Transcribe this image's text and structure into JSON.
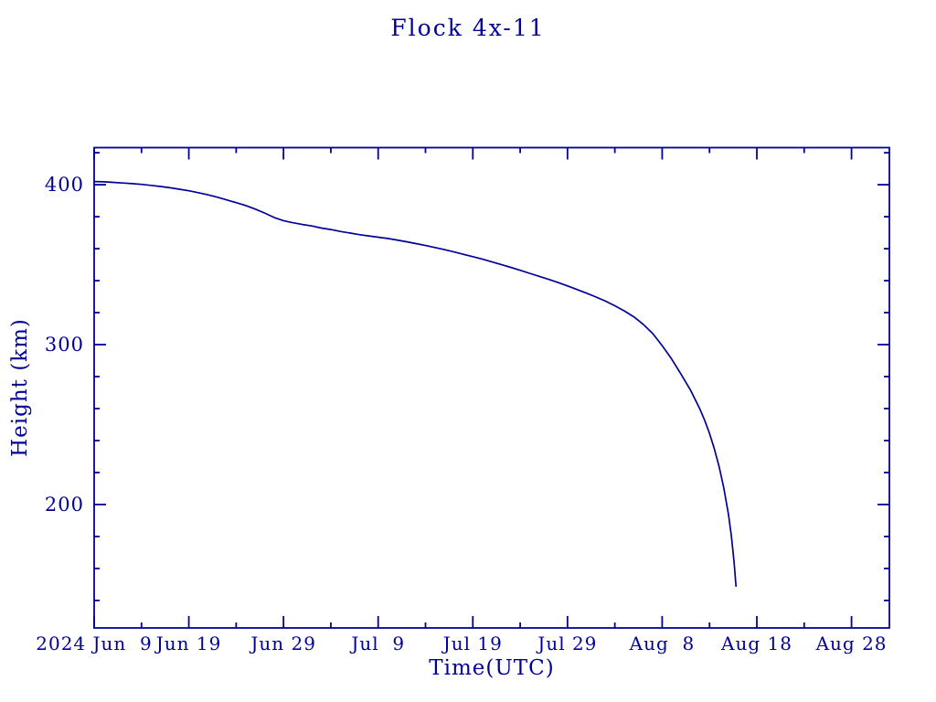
{
  "page": {
    "background": "#ffffff"
  },
  "chart_data": {
    "type": "line",
    "title": "Flock 4x-11",
    "xlabel": "Time(UTC)",
    "ylabel": "Height (km)",
    "text_color": "#000099",
    "axis_color": "#000099",
    "line_color": "#000099",
    "background": "#ffffff",
    "grid": false,
    "legend": "none",
    "x_axis": {
      "unit": "date (days after 2024 Jun 9)",
      "range_days": [
        0,
        84
      ],
      "major_ticks": [
        {
          "day": 0,
          "label": "2024 Jun  9"
        },
        {
          "day": 10,
          "label": "Jun 19"
        },
        {
          "day": 20,
          "label": "Jun 29"
        },
        {
          "day": 30,
          "label": "Jul  9"
        },
        {
          "day": 40,
          "label": "Jul 19"
        },
        {
          "day": 50,
          "label": "Jul 29"
        },
        {
          "day": 60,
          "label": "Aug  8"
        },
        {
          "day": 70,
          "label": "Aug 18"
        },
        {
          "day": 80,
          "label": "Aug 28"
        }
      ],
      "minor_tick_days": [
        5,
        15,
        25,
        35,
        45,
        55,
        65,
        75
      ]
    },
    "y_axis": {
      "unit": "km",
      "range": [
        122.8,
        423.2
      ],
      "major_ticks": [
        400,
        300,
        200
      ],
      "minor_ticks": [
        420,
        380,
        360,
        340,
        320,
        280,
        260,
        240,
        220,
        180,
        160,
        140
      ]
    },
    "series": [
      {
        "name": "Flock 4x-11 height",
        "points_day_km": [
          [
            0,
            402
          ],
          [
            1,
            401.8
          ],
          [
            2,
            401.5
          ],
          [
            3,
            401.1
          ],
          [
            4,
            400.7
          ],
          [
            5,
            400.2
          ],
          [
            6,
            399.6
          ],
          [
            7,
            398.9
          ],
          [
            8,
            398.1
          ],
          [
            9,
            397.2
          ],
          [
            10,
            396.2
          ],
          [
            11,
            395
          ],
          [
            12,
            393.7
          ],
          [
            13,
            392.2
          ],
          [
            14,
            390.5
          ],
          [
            15,
            388.8
          ],
          [
            16,
            387
          ],
          [
            17,
            384.8
          ],
          [
            18,
            382.3
          ],
          [
            19,
            379.5
          ],
          [
            20,
            377.5
          ],
          [
            21,
            376.2
          ],
          [
            22,
            375.1
          ],
          [
            23,
            374.2
          ],
          [
            24,
            372.9
          ],
          [
            25,
            372
          ],
          [
            26,
            370.8
          ],
          [
            27,
            369.8
          ],
          [
            28,
            368.8
          ],
          [
            29,
            368
          ],
          [
            30,
            367.2
          ],
          [
            31,
            366.4
          ],
          [
            32,
            365.4
          ],
          [
            33,
            364.3
          ],
          [
            34,
            363.2
          ],
          [
            35,
            362
          ],
          [
            36,
            360.7
          ],
          [
            37,
            359.4
          ],
          [
            38,
            358
          ],
          [
            39,
            356.5
          ],
          [
            40,
            355
          ],
          [
            41,
            353.5
          ],
          [
            42,
            351.8
          ],
          [
            43,
            350.1
          ],
          [
            44,
            348.3
          ],
          [
            45,
            346.5
          ],
          [
            46,
            344.6
          ],
          [
            47,
            342.7
          ],
          [
            48,
            340.8
          ],
          [
            49,
            338.8
          ],
          [
            50,
            336.7
          ],
          [
            51,
            334.5
          ],
          [
            52,
            332.2
          ],
          [
            53,
            329.8
          ],
          [
            54,
            327.2
          ],
          [
            55,
            324.3
          ],
          [
            56,
            321.1
          ],
          [
            57,
            317.4
          ],
          [
            58,
            312.7
          ],
          [
            59,
            306.9
          ],
          [
            60,
            299.4
          ],
          [
            61,
            291
          ],
          [
            62,
            281.5
          ],
          [
            63,
            271.5
          ],
          [
            64,
            259.5
          ],
          [
            64.5,
            252.5
          ],
          [
            65,
            244.5
          ],
          [
            65.5,
            235
          ],
          [
            66,
            224
          ],
          [
            66.5,
            210.5
          ],
          [
            67,
            194
          ],
          [
            67.3,
            181
          ],
          [
            67.6,
            164
          ],
          [
            67.8,
            149
          ]
        ]
      }
    ]
  }
}
